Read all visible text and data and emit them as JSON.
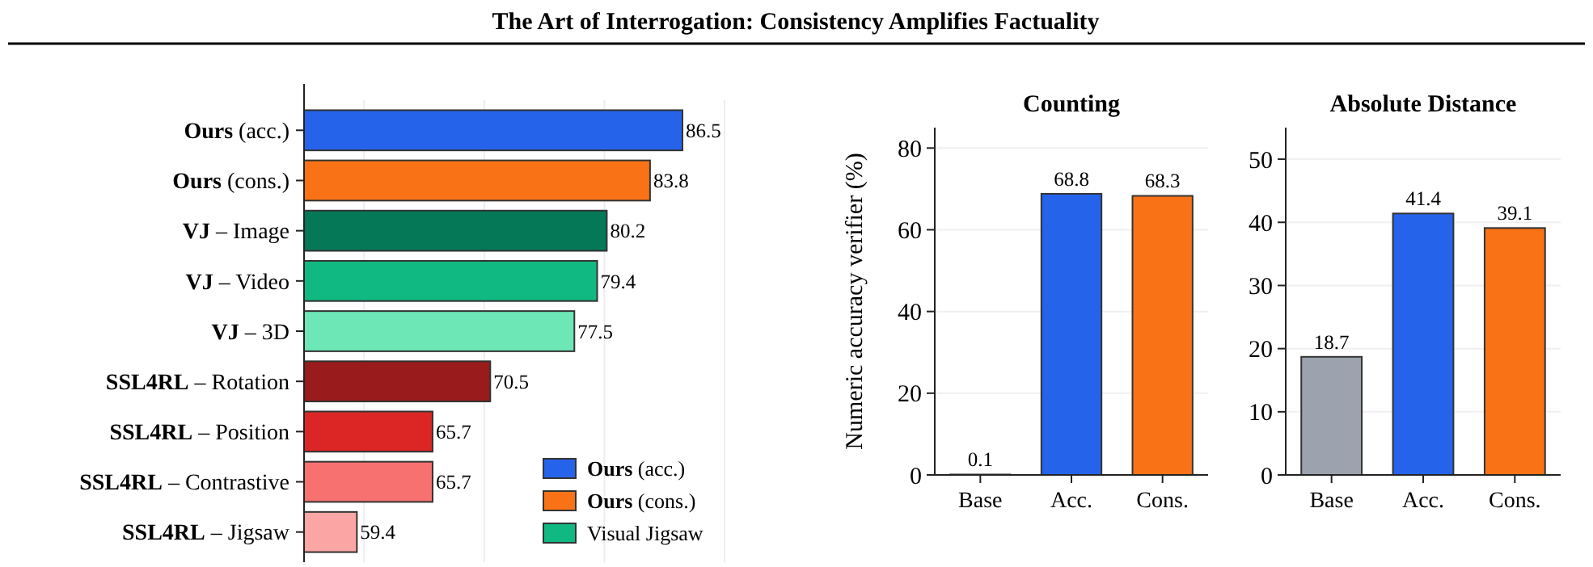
{
  "chart_data": [
    {
      "type": "bar",
      "orientation": "horizontal",
      "title": "The Art of Interrogation: Consistency Amplifies Factuality",
      "categories": [
        "Ours (acc.)",
        "Ours (cons.)",
        "VJ – Image",
        "VJ – Video",
        "VJ – 3D",
        "SSL4RL – Rotation",
        "SSL4RL – Position",
        "SSL4RL – Contrastive",
        "SSL4RL – Jigsaw"
      ],
      "series": [
        {
          "name": "Ours (acc.)",
          "color": "#2563eb",
          "values": [
            86.5,
            null,
            null,
            null,
            null,
            null,
            null,
            null,
            null
          ]
        },
        {
          "name": "Ours (cons.)",
          "color": "#f97316",
          "values": [
            null,
            83.8,
            null,
            null,
            null,
            null,
            null,
            null,
            null
          ]
        },
        {
          "name": "Visual Jigsaw",
          "color": "#10b981",
          "colors": [
            null,
            null,
            "#047857",
            "#10b981",
            "#6ee7b7",
            null,
            null,
            null,
            null
          ],
          "values": [
            null,
            null,
            80.2,
            79.4,
            77.5,
            null,
            null,
            null,
            null
          ]
        },
        {
          "colors": [
            null,
            null,
            null,
            null,
            null,
            "#991b1b",
            "#dc2626",
            "#f87171",
            "#fca5a5"
          ],
          "values": [
            null,
            null,
            null,
            null,
            null,
            70.5,
            65.7,
            65.7,
            59.4
          ]
        }
      ],
      "xlim": [
        55,
        90
      ],
      "xticks": [
        {
          "value": 60,
          "label": null
        },
        {
          "value": 70,
          "label": null
        },
        {
          "value": 80,
          "label": null
        },
        {
          "value": 90,
          "label": null
        }
      ],
      "tick_labels": "y",
      "grid": "x",
      "data_labels": true,
      "legend": "bottom right"
    },
    {
      "type": "bar",
      "title": "Counting",
      "ylabel": "Numeric accuracy verifier (%)",
      "categories": [
        "Base",
        "Acc.",
        "Cons."
      ],
      "values": [
        0.1,
        68.8,
        68.3
      ],
      "colors": [
        "#9ca3af",
        "#2563eb",
        "#f97316"
      ],
      "ylim": [
        0,
        85
      ],
      "yticks": [
        0,
        20,
        40,
        60,
        80
      ],
      "grid": "y",
      "data_labels": true
    },
    {
      "type": "bar",
      "title": "Absolute Distance",
      "categories": [
        "Base",
        "Acc.",
        "Cons."
      ],
      "values": [
        18.7,
        41.4,
        39.1
      ],
      "colors": [
        "#9ca3af",
        "#2563eb",
        "#f97316"
      ],
      "ylim": [
        0,
        55
      ],
      "yticks": [
        0,
        10,
        20,
        30,
        40,
        50
      ],
      "grid": "y",
      "data_labels": true
    }
  ]
}
